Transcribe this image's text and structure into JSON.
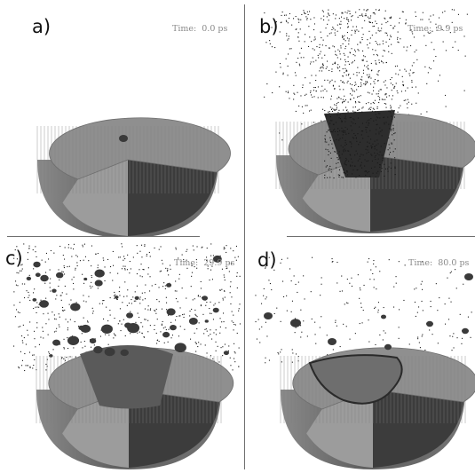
{
  "figure": {
    "panels": [
      {
        "label": "a)",
        "time_prefix": "Time:",
        "time": "0.0 ps"
      },
      {
        "label": "b)",
        "time_prefix": "Time:",
        "time": "9.9 ps"
      },
      {
        "label": "c)",
        "time_prefix": "Time:",
        "time": "29.9 ps"
      },
      {
        "label": "d)",
        "time_prefix": "Time:",
        "time": "80.0 ps"
      }
    ]
  },
  "colors": {
    "background": "#ffffff",
    "surface_top": "#8f8f8f",
    "surface_side": "#6a6a6a",
    "cut_face_light": "#9c9c9c",
    "cut_face_dark": "#3c3c3c",
    "particles": "#1a1a1a",
    "divider": "#6f6f6f"
  }
}
